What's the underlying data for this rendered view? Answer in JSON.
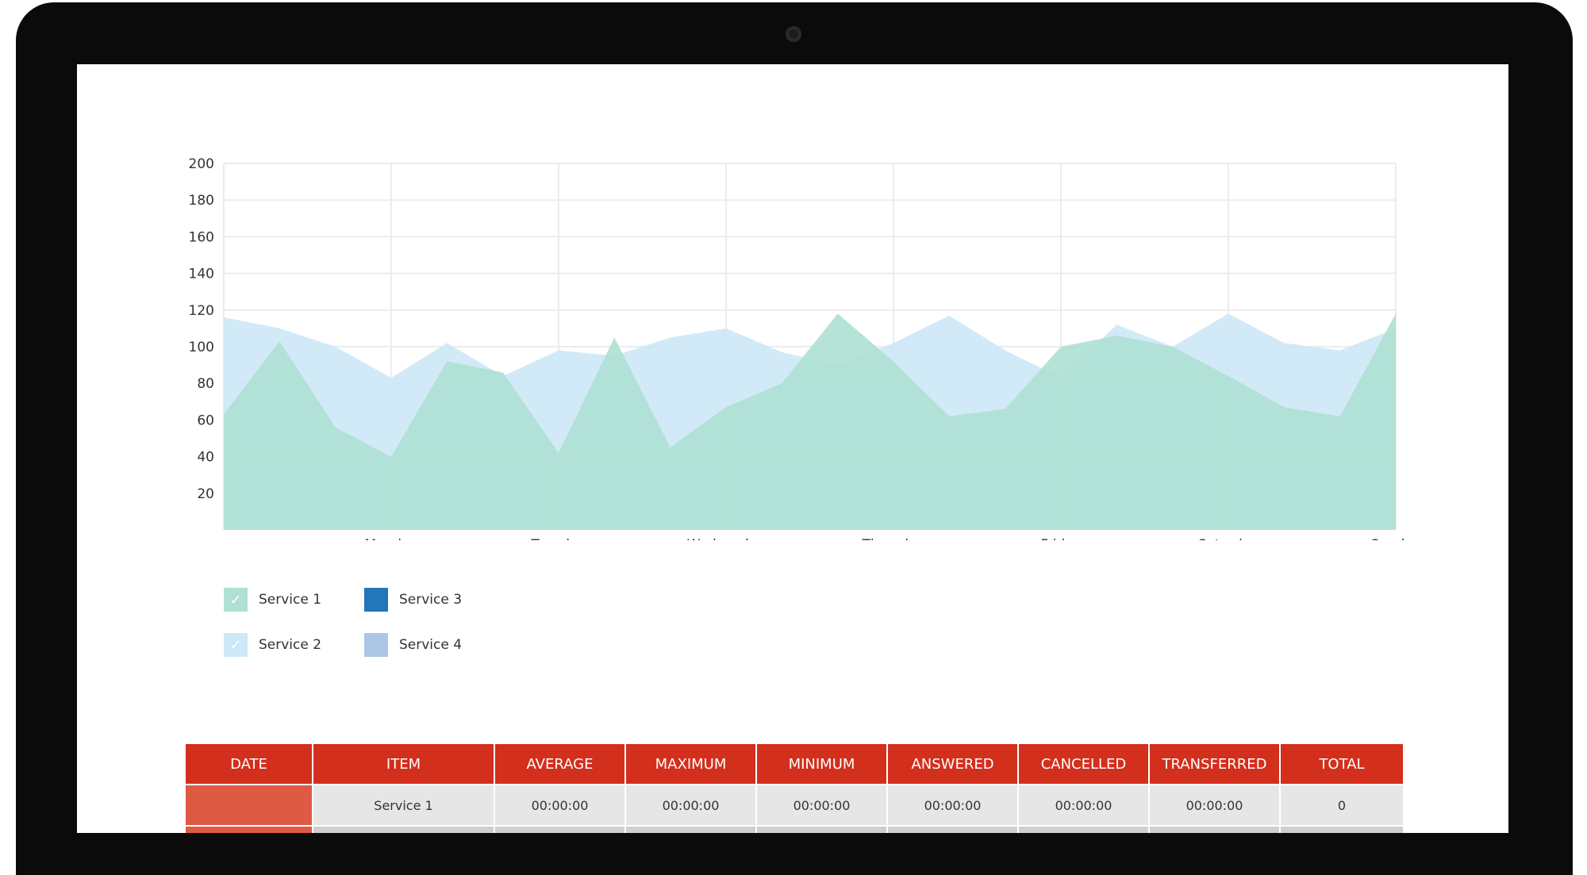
{
  "legend": {
    "items": [
      {
        "label": "Service 1",
        "color": "#aee0d3",
        "checked": true
      },
      {
        "label": "Service 2",
        "color": "#cde8f7",
        "checked": true
      },
      {
        "label": "Service 3",
        "color": "#2276b9",
        "checked": false
      },
      {
        "label": "Service 4",
        "color": "#acc6e6",
        "checked": false
      }
    ]
  },
  "table": {
    "headers": [
      "DATE",
      "ITEM",
      "AVERAGE",
      "MAXIMUM",
      "MINIMUM",
      "ANSWERED",
      "CANCELLED",
      "TRANSFERRED",
      "TOTAL"
    ],
    "rows": [
      {
        "date": "",
        "item": "Service 1",
        "average": "00:00:00",
        "maximum": "00:00:00",
        "minimum": "00:00:00",
        "answered": "00:00:00",
        "cancelled": "00:00:00",
        "transferred": "00:00:00",
        "total": "0"
      },
      {
        "date": "",
        "item": "",
        "average": "",
        "maximum": "",
        "minimum": "",
        "answered": "",
        "cancelled": "",
        "transferred": "",
        "total": ""
      }
    ]
  },
  "chart_data": {
    "type": "area",
    "x": [
      0,
      0.333,
      0.667,
      1,
      1.333,
      1.667,
      2,
      2.333,
      2.667,
      3,
      3.333,
      3.667,
      4,
      4.333,
      4.667,
      5,
      5.333,
      5.667,
      6,
      6.333,
      6.667,
      7
    ],
    "x_tick_labels": [
      "Monday",
      "Tuesday",
      "Wednesday",
      "Thursday",
      "Friday",
      "Saturday",
      "Sunday"
    ],
    "x_tick_positions": [
      1,
      2,
      3,
      4,
      5,
      6,
      7
    ],
    "ylim": [
      0,
      200
    ],
    "y_ticks": [
      20,
      40,
      60,
      80,
      100,
      120,
      140,
      160,
      180,
      200
    ],
    "grid": true,
    "series": [
      {
        "name": "Service 2",
        "color": "#cde8f7",
        "values": [
          116,
          110,
          100,
          83,
          102,
          84,
          98,
          95,
          105,
          110,
          97,
          90,
          102,
          117,
          98,
          83,
          112,
          100,
          118,
          102,
          98,
          110
        ]
      },
      {
        "name": "Service 1",
        "color": "#aee0d3",
        "values": [
          63,
          103,
          56,
          40,
          92,
          86,
          42,
          105,
          45,
          67,
          80,
          118,
          92,
          62,
          66,
          100,
          106,
          100,
          84,
          67,
          62,
          118
        ]
      }
    ]
  }
}
